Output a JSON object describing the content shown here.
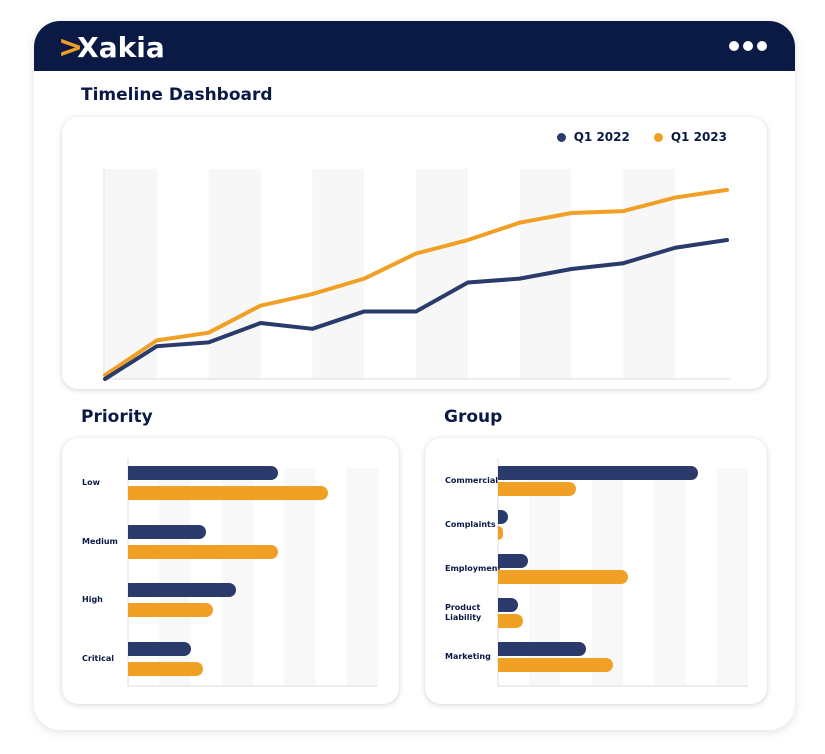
{
  "header": {
    "logo_text": "Xakia",
    "menu_icon": "more-dots-icon"
  },
  "title": "Timeline Dashboard",
  "colors": {
    "q1_2022": "#2a3a6a",
    "q1_2023": "#f0a024",
    "header_bg": "#0a1a45"
  },
  "chart_data": [
    {
      "type": "line",
      "title": "",
      "legend_position": "top-right",
      "x": [
        1,
        2,
        3,
        4,
        5,
        6,
        7,
        8,
        9,
        10,
        11,
        12,
        13
      ],
      "ylim": [
        0,
        100
      ],
      "series": [
        {
          "name": "Q1 2022",
          "values": [
            0,
            17,
            19,
            29,
            26,
            35,
            35,
            50,
            52,
            57,
            60,
            68,
            72
          ]
        },
        {
          "name": "Q1 2023",
          "values": [
            2,
            20,
            24,
            38,
            44,
            52,
            65,
            72,
            81,
            86,
            87,
            94,
            98
          ]
        }
      ]
    },
    {
      "type": "bar",
      "orientation": "horizontal",
      "title": "Priority",
      "categories": [
        "Low",
        "Medium",
        "High",
        "Critical"
      ],
      "xlim": [
        0,
        100
      ],
      "series": [
        {
          "name": "Q1 2022",
          "values": [
            60,
            31,
            43,
            25
          ]
        },
        {
          "name": "Q1 2023",
          "values": [
            80,
            60,
            34,
            30
          ]
        }
      ]
    },
    {
      "type": "bar",
      "orientation": "horizontal",
      "title": "Group",
      "categories": [
        "Commercial",
        "Complaints",
        "Employment",
        "Product Liability",
        "Marketing"
      ],
      "xlim": [
        0,
        100
      ],
      "series": [
        {
          "name": "Q1 2022",
          "values": [
            80,
            4,
            12,
            8,
            35
          ]
        },
        {
          "name": "Q1 2023",
          "values": [
            31,
            2,
            52,
            10,
            46
          ]
        }
      ]
    }
  ]
}
